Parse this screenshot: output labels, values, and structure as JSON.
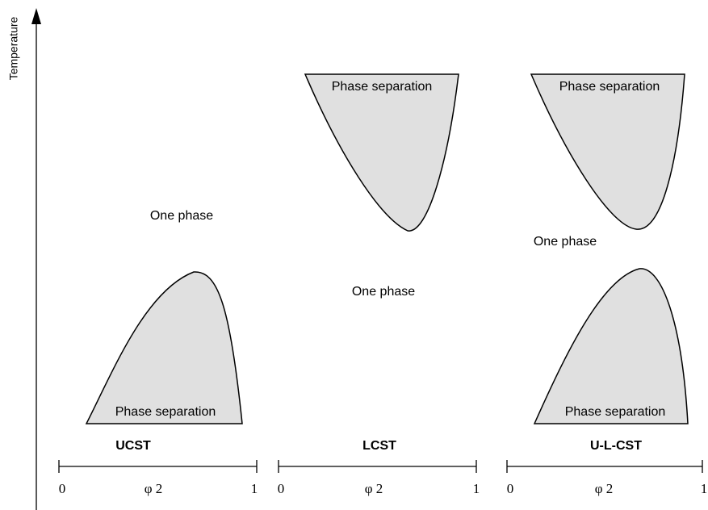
{
  "y_axis_label": "Temperature",
  "panels": [
    {
      "label": "UCST",
      "one_phase": [
        "One phase"
      ],
      "phase_separation": [
        "Phase separation"
      ],
      "axis": {
        "min": "0",
        "variable": "φ 2",
        "max": "1"
      }
    },
    {
      "label": "LCST",
      "one_phase": [
        "One phase"
      ],
      "phase_separation": [
        "Phase separation"
      ],
      "axis": {
        "min": "0",
        "variable": "φ 2",
        "max": "1"
      }
    },
    {
      "label": "U-L-CST",
      "one_phase": [
        "One phase"
      ],
      "phase_separation": [
        "Phase separation",
        "Phase separation"
      ],
      "axis": {
        "min": "0",
        "variable": "φ 2",
        "max": "1"
      }
    }
  ]
}
